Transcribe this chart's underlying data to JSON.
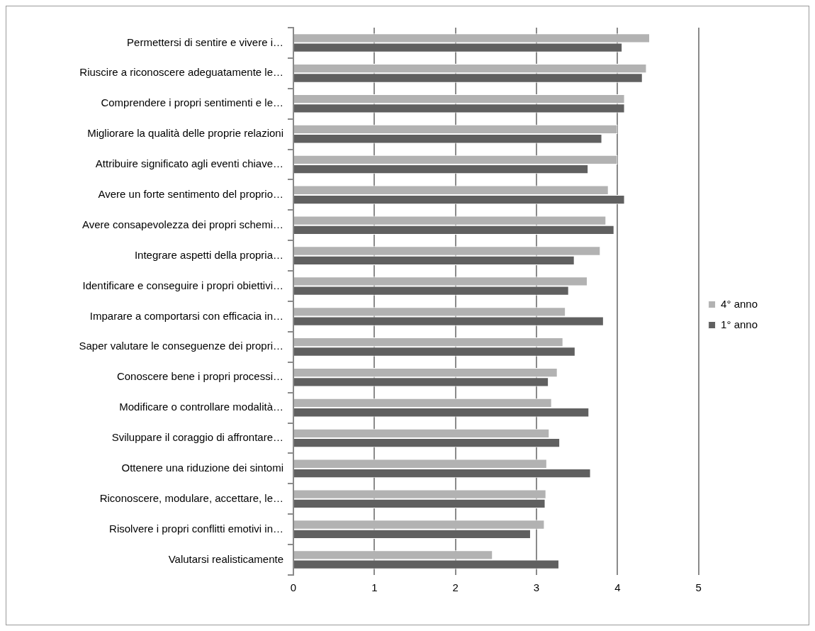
{
  "chart_data": {
    "type": "bar",
    "orientation": "horizontal",
    "categories": [
      "Permettersi di sentire e vivere i…",
      "Riuscire a riconoscere adeguatamente le…",
      "Comprendere i propri sentimenti e le…",
      "Migliorare la qualità delle proprie relazioni",
      "Attribuire significato agli eventi chiave…",
      "Avere un forte sentimento del proprio…",
      "Avere consapevolezza dei propri schemi…",
      "Integrare aspetti della propria…",
      "Identificare e conseguire i propri obiettivi…",
      "Imparare a comportarsi con efficacia in…",
      "Saper valutare le conseguenze dei propri…",
      "Conoscere bene i propri processi…",
      "Modificare o controllare modalità…",
      "Sviluppare il coraggio di affrontare…",
      "Ottenere una riduzione dei sintomi",
      "Riconoscere, modulare, accettare, le…",
      "Risolvere i propri conflitti emotivi in…",
      "Valutarsi realisticamente"
    ],
    "series": [
      {
        "name": "4° anno",
        "color": "#b2b2b2",
        "values": [
          4.4,
          4.36,
          4.09,
          4.0,
          4.0,
          3.89,
          3.86,
          3.79,
          3.63,
          3.36,
          3.33,
          3.26,
          3.19,
          3.16,
          3.13,
          3.12,
          3.1,
          2.46
        ]
      },
      {
        "name": "1° anno",
        "color": "#606060",
        "values": [
          4.06,
          4.31,
          4.09,
          3.81,
          3.64,
          4.09,
          3.96,
          3.47,
          3.4,
          3.83,
          3.48,
          3.15,
          3.65,
          3.29,
          3.67,
          3.11,
          2.93,
          3.28
        ]
      }
    ],
    "xlim": [
      0,
      5
    ],
    "xticks": [
      0,
      1,
      2,
      3,
      4,
      5
    ],
    "grid": "x",
    "legend": "right"
  }
}
